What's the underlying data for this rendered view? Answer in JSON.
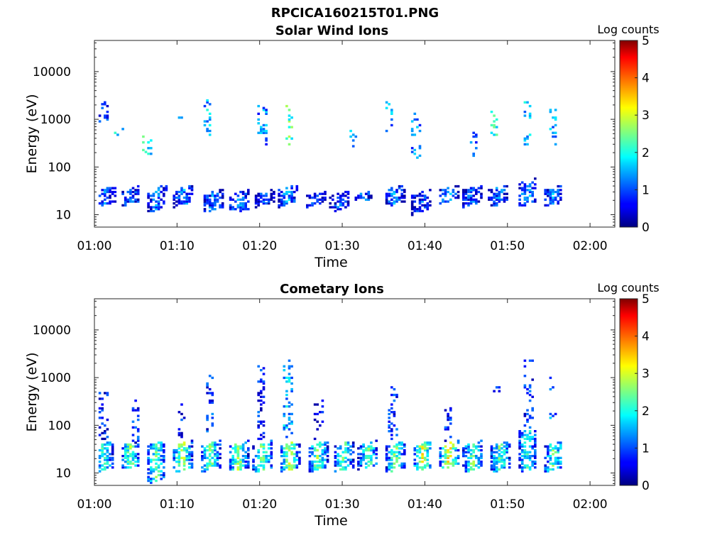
{
  "figure_title": "RPCICA160215T01.PNG",
  "chart_data": [
    {
      "type": "heatmap",
      "title": "Solar Wind Ions",
      "xlabel": "Time",
      "ylabel": "Energy (eV)",
      "x_ticks": [
        "01:00",
        "01:10",
        "01:20",
        "01:30",
        "01:40",
        "01:50",
        "02:00"
      ],
      "xlim_minutes": [
        0,
        63
      ],
      "y_scale": "log",
      "y_ticks": [
        10,
        100,
        1000,
        10000
      ],
      "ylim": [
        5.5,
        45000
      ],
      "colorbar": {
        "label": "Log counts",
        "range": [
          0,
          5
        ],
        "ticks": [
          0,
          1,
          2,
          3,
          4,
          5
        ],
        "colormap": "jet"
      },
      "data_time_range_minutes": [
        0.5,
        56.5
      ],
      "bursts": [
        {
          "t": 1.2,
          "e_lo": 17,
          "e_hi": 38,
          "level": 1.1
        },
        {
          "t": 4.2,
          "e_lo": 17,
          "e_hi": 38,
          "level": 1.2
        },
        {
          "t": 7.5,
          "e_lo": 13,
          "e_hi": 40,
          "level": 1.3
        },
        {
          "t": 10.6,
          "e_lo": 17,
          "e_hi": 40,
          "level": 1.4
        },
        {
          "t": 14.2,
          "e_lo": 13,
          "e_hi": 32,
          "level": 1.2
        },
        {
          "t": 17.3,
          "e_lo": 12,
          "e_hi": 32,
          "level": 1.3
        },
        {
          "t": 20.5,
          "e_lo": 17,
          "e_hi": 32,
          "level": 1.0
        },
        {
          "t": 23.3,
          "e_lo": 17,
          "e_hi": 40,
          "level": 1.5
        },
        {
          "t": 26.7,
          "e_lo": 17,
          "e_hi": 30,
          "level": 0.9
        },
        {
          "t": 29.5,
          "e_lo": 13,
          "e_hi": 30,
          "level": 1.0
        },
        {
          "t": 32.4,
          "e_lo": 20,
          "e_hi": 30,
          "level": 1.2
        },
        {
          "t": 36.2,
          "e_lo": 17,
          "e_hi": 40,
          "level": 1.3
        },
        {
          "t": 39.5,
          "e_lo": 12,
          "e_hi": 32,
          "level": 0.9
        },
        {
          "t": 42.8,
          "e_lo": 20,
          "e_hi": 40,
          "level": 1.5
        },
        {
          "t": 45.6,
          "e_lo": 17,
          "e_hi": 40,
          "level": 1.1
        },
        {
          "t": 48.8,
          "e_lo": 17,
          "e_hi": 40,
          "level": 1.2
        },
        {
          "t": 52.3,
          "e_lo": 17,
          "e_hi": 55,
          "level": 1.5
        },
        {
          "t": 55.4,
          "e_lo": 17,
          "e_hi": 40,
          "level": 1.3
        }
      ],
      "high_energy": [
        {
          "t": 1.0,
          "e_lo": 800,
          "e_hi": 2500,
          "level": 0.8
        },
        {
          "t": 2.8,
          "e_lo": 500,
          "e_hi": 700,
          "level": 1.8
        },
        {
          "t": 6.2,
          "e_lo": 180,
          "e_hi": 550,
          "level": 1.9
        },
        {
          "t": 10.0,
          "e_lo": 1100,
          "e_hi": 1500,
          "level": 1.3
        },
        {
          "t": 13.5,
          "e_lo": 450,
          "e_hi": 2700,
          "level": 1.5
        },
        {
          "t": 20.2,
          "e_lo": 300,
          "e_hi": 2000,
          "level": 1.2
        },
        {
          "t": 23.4,
          "e_lo": 300,
          "e_hi": 2800,
          "level": 2.2
        },
        {
          "t": 31.3,
          "e_lo": 250,
          "e_hi": 700,
          "level": 1.2
        },
        {
          "t": 35.5,
          "e_lo": 350,
          "e_hi": 2600,
          "level": 1.3
        },
        {
          "t": 38.8,
          "e_lo": 150,
          "e_hi": 1500,
          "level": 1.2
        },
        {
          "t": 45.7,
          "e_lo": 120,
          "e_hi": 600,
          "level": 0.9
        },
        {
          "t": 48.3,
          "e_lo": 500,
          "e_hi": 1600,
          "level": 1.9
        },
        {
          "t": 52.2,
          "e_lo": 300,
          "e_hi": 2600,
          "level": 1.5
        },
        {
          "t": 55.3,
          "e_lo": 300,
          "e_hi": 1800,
          "level": 1.5
        }
      ]
    },
    {
      "type": "heatmap",
      "title": "Cometary Ions",
      "xlabel": "Time",
      "ylabel": "Energy (eV)",
      "x_ticks": [
        "01:00",
        "01:10",
        "01:20",
        "01:30",
        "01:40",
        "01:50",
        "02:00"
      ],
      "xlim_minutes": [
        0,
        63
      ],
      "y_scale": "log",
      "y_ticks": [
        10,
        100,
        1000,
        10000
      ],
      "ylim": [
        5.5,
        45000
      ],
      "colorbar": {
        "label": "Log counts",
        "range": [
          0,
          5
        ],
        "ticks": [
          0,
          1,
          2,
          3,
          4,
          5
        ],
        "colormap": "jet"
      },
      "data_time_range_minutes": [
        0.5,
        56.5
      ],
      "bursts": [
        {
          "t": 1.0,
          "e_lo": 12,
          "e_hi": 45,
          "level": 2.1
        },
        {
          "t": 4.2,
          "e_lo": 12,
          "e_hi": 45,
          "level": 2.5
        },
        {
          "t": 7.3,
          "e_lo": 7,
          "e_hi": 45,
          "level": 2.3
        },
        {
          "t": 10.5,
          "e_lo": 12,
          "e_hi": 45,
          "level": 2.8
        },
        {
          "t": 13.9,
          "e_lo": 12,
          "e_hi": 45,
          "level": 2.4
        },
        {
          "t": 17.3,
          "e_lo": 12,
          "e_hi": 45,
          "level": 2.7
        },
        {
          "t": 20.2,
          "e_lo": 12,
          "e_hi": 45,
          "level": 2.6
        },
        {
          "t": 23.5,
          "e_lo": 12,
          "e_hi": 45,
          "level": 2.8
        },
        {
          "t": 26.9,
          "e_lo": 12,
          "e_hi": 45,
          "level": 2.5
        },
        {
          "t": 30.0,
          "e_lo": 12,
          "e_hi": 45,
          "level": 2.3
        },
        {
          "t": 33.0,
          "e_lo": 14,
          "e_hi": 45,
          "level": 2.3
        },
        {
          "t": 36.3,
          "e_lo": 12,
          "e_hi": 45,
          "level": 2.5
        },
        {
          "t": 39.6,
          "e_lo": 12,
          "e_hi": 45,
          "level": 2.9
        },
        {
          "t": 42.8,
          "e_lo": 14,
          "e_hi": 45,
          "level": 3.3
        },
        {
          "t": 45.7,
          "e_lo": 12,
          "e_hi": 45,
          "level": 2.4
        },
        {
          "t": 49.0,
          "e_lo": 12,
          "e_hi": 45,
          "level": 2.3
        },
        {
          "t": 52.3,
          "e_lo": 12,
          "e_hi": 90,
          "level": 2.0
        },
        {
          "t": 55.5,
          "e_lo": 12,
          "e_hi": 45,
          "level": 2.4
        }
      ],
      "high_energy": [
        {
          "t": 1.0,
          "e_lo": 45,
          "e_hi": 600,
          "level": 0.6
        },
        {
          "t": 4.8,
          "e_lo": 45,
          "e_hi": 350,
          "level": 0.7
        },
        {
          "t": 10.6,
          "e_lo": 60,
          "e_hi": 300,
          "level": 0.7
        },
        {
          "t": 13.8,
          "e_lo": 50,
          "e_hi": 1700,
          "level": 0.8
        },
        {
          "t": 20.0,
          "e_lo": 50,
          "e_hi": 2400,
          "level": 0.7
        },
        {
          "t": 23.3,
          "e_lo": 60,
          "e_hi": 2500,
          "level": 1.5
        },
        {
          "t": 27.0,
          "e_lo": 50,
          "e_hi": 350,
          "level": 0.6
        },
        {
          "t": 36.0,
          "e_lo": 50,
          "e_hi": 800,
          "level": 0.7
        },
        {
          "t": 42.7,
          "e_lo": 50,
          "e_hi": 300,
          "level": 0.7
        },
        {
          "t": 48.5,
          "e_lo": 550,
          "e_hi": 700,
          "level": 0.9
        },
        {
          "t": 52.4,
          "e_lo": 90,
          "e_hi": 2600,
          "level": 0.8
        },
        {
          "t": 55.3,
          "e_lo": 150,
          "e_hi": 1200,
          "level": 1.2
        }
      ]
    }
  ]
}
